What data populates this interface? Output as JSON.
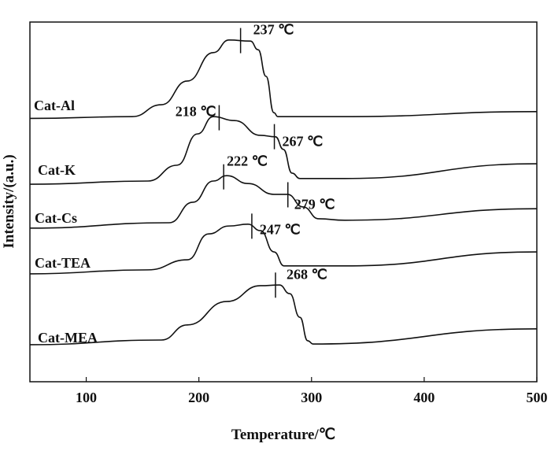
{
  "chart_data": {
    "type": "line",
    "title": "",
    "xlabel": "Temperature/℃",
    "ylabel": "Intensity/(a.u.)",
    "xlim": [
      50,
      500
    ],
    "ylim": [
      0,
      100
    ],
    "xticks": [
      100,
      200,
      300,
      400,
      500
    ],
    "grid": false,
    "series": [
      {
        "name": "Cat-Al",
        "x": [
          50,
          140.8,
          166.7,
          189.8,
          212.8,
          226.8,
          245.7,
          252.6,
          259.6,
          266.6,
          270.1,
          329.5,
          500
        ],
        "y": [
          73.2,
          73.7,
          77.0,
          83.6,
          91.5,
          95.0,
          94.7,
          92.3,
          84.9,
          74.8,
          73.7,
          73.7,
          75.1
        ],
        "peaks": [
          {
            "t": 237,
            "label": "237 ℃"
          }
        ]
      },
      {
        "name": "Cat-K",
        "x": [
          50,
          154.8,
          180.7,
          198.8,
          212.8,
          231.7,
          254.7,
          268,
          275,
          282.7,
          289.7,
          329.5,
          500
        ],
        "y": [
          54.9,
          55.8,
          60.2,
          68.9,
          73.7,
          72.6,
          68.5,
          68.1,
          64.6,
          58.0,
          56.5,
          56.5,
          60.6
        ],
        "peaks": [
          {
            "t": 218,
            "label": "218 ℃"
          },
          {
            "t": 267,
            "label": "267 ℃"
          }
        ]
      },
      {
        "name": "Cat-Cs",
        "x": [
          50,
          173.7,
          194.6,
          212.8,
          224.7,
          243.6,
          266.6,
          278.5,
          292.5,
          306.4,
          329.5,
          500
        ],
        "y": [
          42.7,
          44.2,
          49.9,
          55.8,
          57.3,
          55.1,
          52.1,
          52.1,
          48.6,
          45.3,
          44.9,
          48.1
        ],
        "peaks": [
          {
            "t": 222,
            "label": "222 ℃"
          },
          {
            "t": 279,
            "label": "279 ℃"
          }
        ]
      },
      {
        "name": "Cat-TEA",
        "x": [
          50,
          154.8,
          189.8,
          208.6,
          226.8,
          243.6,
          254.7,
          266.6,
          275.7,
          329.5,
          500
        ],
        "y": [
          30.0,
          31.1,
          33.9,
          41.1,
          43.3,
          43.8,
          42.0,
          36.1,
          32.2,
          32.2,
          36.1
        ],
        "peaks": [
          {
            "t": 247,
            "label": "247 ℃"
          }
        ]
      },
      {
        "name": "Cat-MEA",
        "x": [
          50,
          166.7,
          189.8,
          224.7,
          254.7,
          271.5,
          280.6,
          289.7,
          296.6,
          301.5,
          500
        ],
        "y": [
          10.3,
          11.6,
          15.8,
          22.3,
          26.7,
          26.9,
          24.5,
          17.9,
          11.4,
          10.5,
          14.7
        ],
        "peaks": [
          {
            "t": 268,
            "label": "268 ℃"
          }
        ]
      }
    ]
  }
}
